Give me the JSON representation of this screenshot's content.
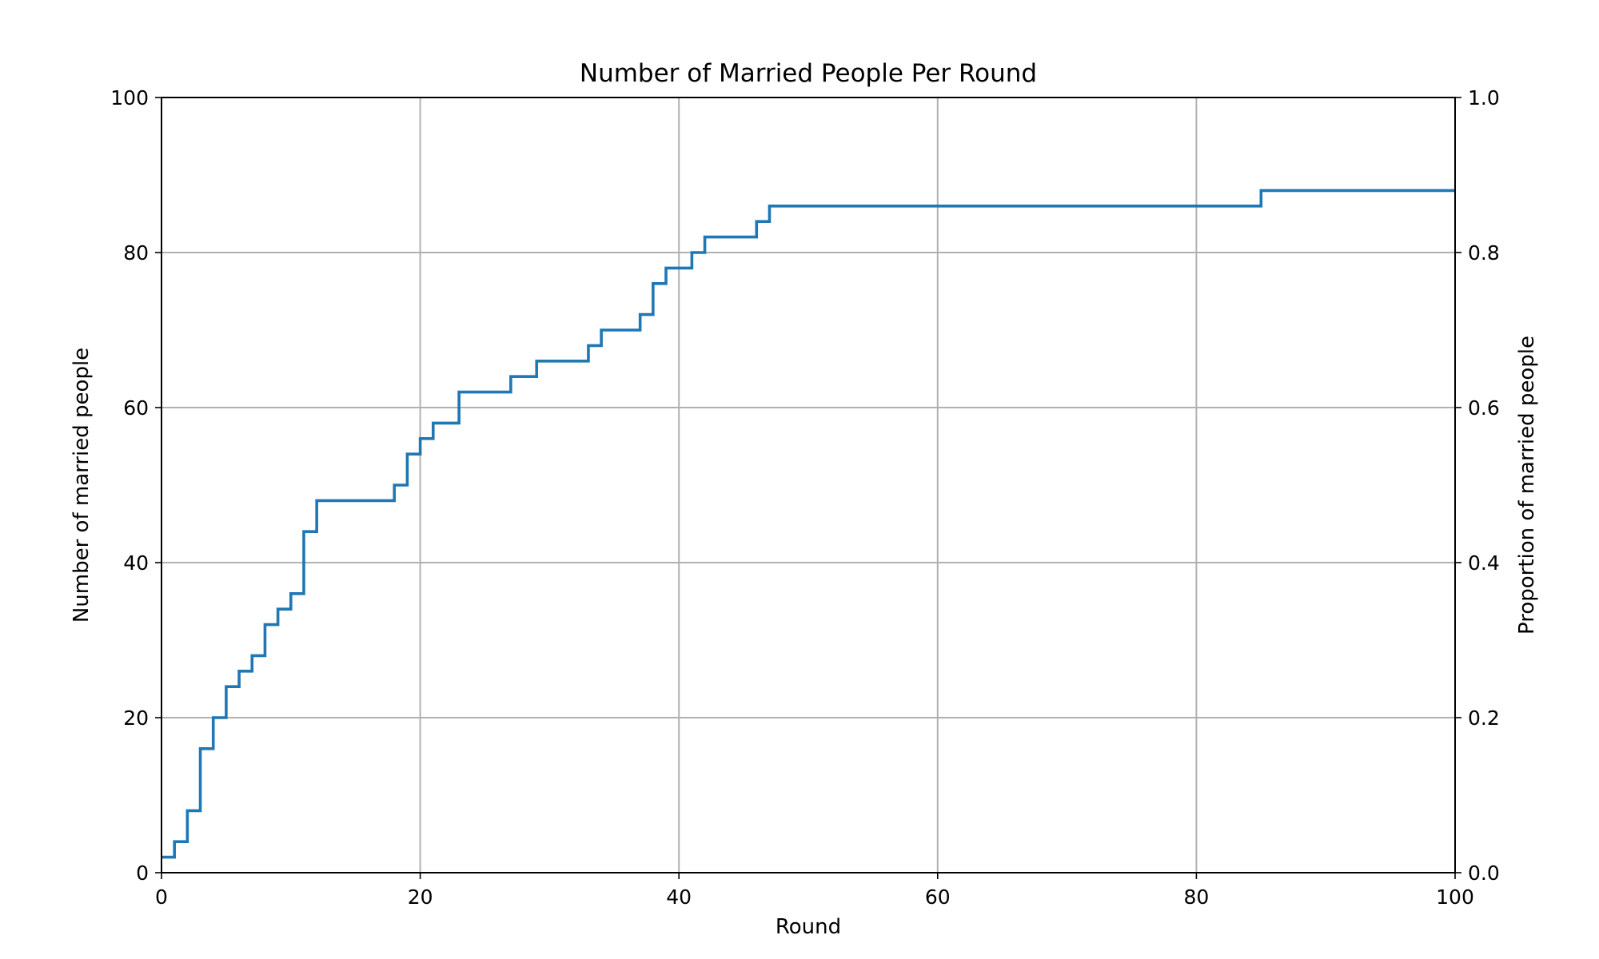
{
  "chart_data": {
    "type": "line",
    "step": "post",
    "title": "Number of Married People Per Round",
    "xlabel": "Round",
    "ylabel": "Number of married people",
    "ylabel_right": "Proportion of married people",
    "xlim": [
      0,
      100
    ],
    "ylim": [
      0,
      100
    ],
    "ylim_right": [
      0.0,
      1.0
    ],
    "grid": true,
    "x_ticks": [
      "0",
      "20",
      "40",
      "60",
      "80",
      "100"
    ],
    "y_ticks": [
      "0",
      "20",
      "40",
      "60",
      "80",
      "100"
    ],
    "y_ticks_right": [
      "0.0",
      "0.2",
      "0.4",
      "0.6",
      "0.8",
      "1.0"
    ],
    "x_tick_values": [
      0,
      20,
      40,
      60,
      80,
      100
    ],
    "y_tick_values": [
      0,
      20,
      40,
      60,
      80,
      100
    ],
    "y_right_tick_values": [
      0.0,
      0.2,
      0.4,
      0.6,
      0.8,
      1.0
    ],
    "series": [
      {
        "color": "#1f77b4",
        "x": [
          0,
          1,
          2,
          3,
          4,
          5,
          6,
          7,
          8,
          9,
          10,
          11,
          12,
          13,
          14,
          15,
          16,
          17,
          18,
          19,
          20,
          21,
          22,
          23,
          24,
          25,
          26,
          27,
          28,
          29,
          30,
          31,
          32,
          33,
          34,
          35,
          36,
          37,
          38,
          39,
          40,
          41,
          42,
          43,
          44,
          45,
          46,
          47,
          85,
          100
        ],
        "y": [
          2,
          4,
          8,
          16,
          20,
          24,
          26,
          28,
          32,
          34,
          36,
          44,
          48,
          48,
          48,
          48,
          48,
          48,
          50,
          54,
          56,
          58,
          58,
          62,
          62,
          62,
          62,
          64,
          64,
          66,
          66,
          66,
          66,
          68,
          70,
          70,
          70,
          72,
          76,
          78,
          78,
          80,
          82,
          82,
          82,
          82,
          84,
          86,
          88,
          88
        ]
      }
    ]
  }
}
